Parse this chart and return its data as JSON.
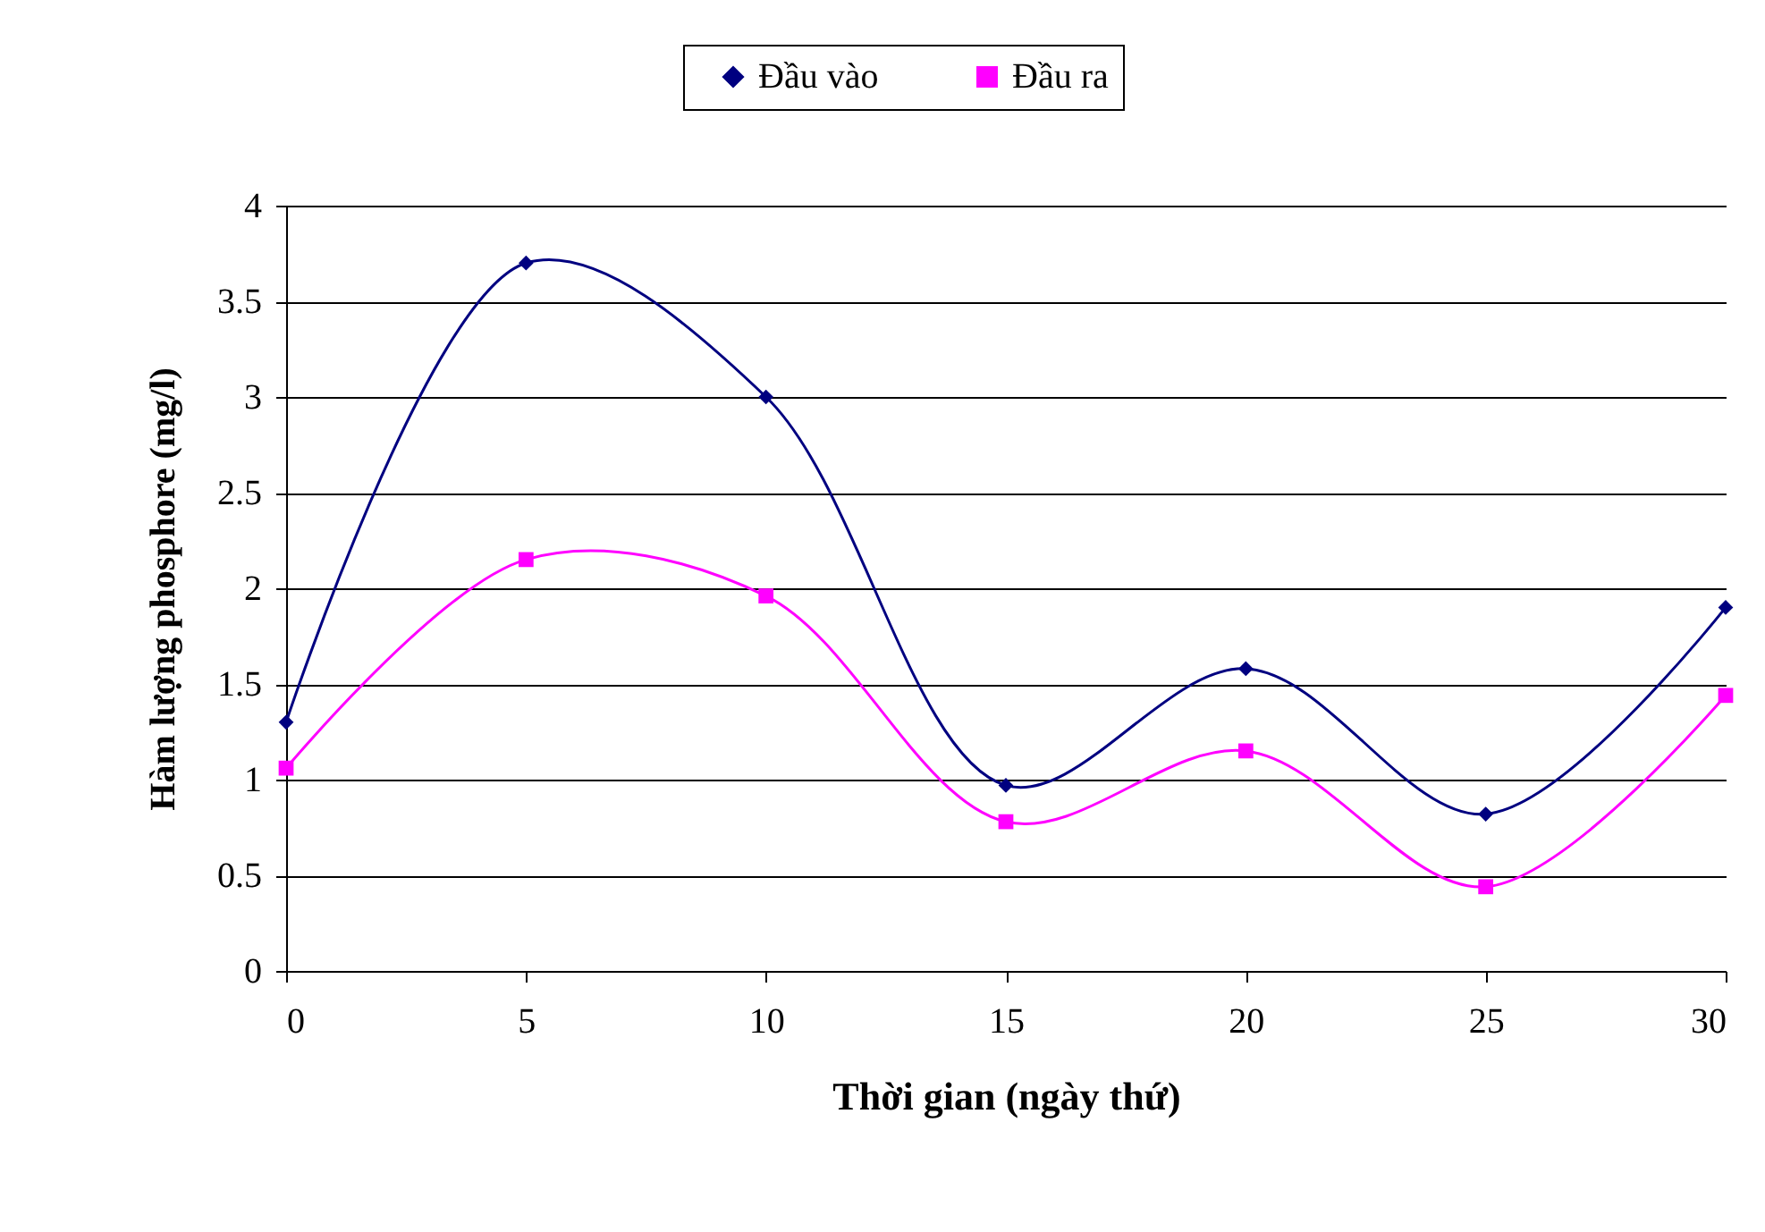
{
  "chart_data": {
    "type": "line",
    "xlabel": "Thời gian (ngày thứ)",
    "ylabel": "Hàm lượng phosphore (mg/l)",
    "x": [
      0,
      5,
      10,
      15,
      20,
      25,
      30
    ],
    "series": [
      {
        "name": "Đầu vào",
        "color": "#000080",
        "marker": "diamond",
        "values": [
          1.3,
          3.7,
          3.0,
          0.97,
          1.58,
          0.82,
          1.9
        ]
      },
      {
        "name": "Đầu ra",
        "color": "#ff00ff",
        "marker": "square",
        "values": [
          1.06,
          2.15,
          1.96,
          0.78,
          1.15,
          0.44,
          1.44
        ]
      }
    ],
    "xlim": [
      0,
      30
    ],
    "xticks": [
      0,
      5,
      10,
      15,
      20,
      25,
      30
    ],
    "ylim": [
      0,
      4
    ],
    "yticks": [
      0,
      0.5,
      1,
      1.5,
      2,
      2.5,
      3,
      3.5,
      4
    ],
    "grid": "y",
    "legend": "top",
    "line_style": "solid"
  }
}
